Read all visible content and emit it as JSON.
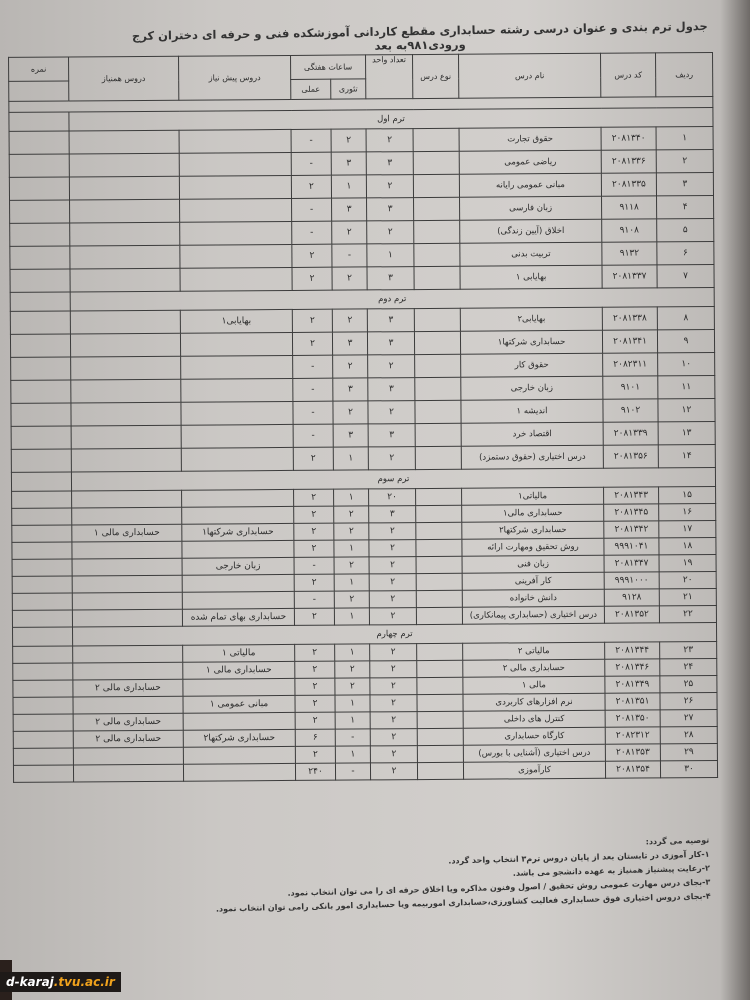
{
  "title": "جدول ترم بندی و عنوان درسی رشته حسابداری مقطع کاردانی آموزشکده فنی و حرفه ای دختران کرج ورودی۹۸۱به بعد",
  "headers": {
    "row": "ردیف",
    "code": "کد درس",
    "name": "نام درس",
    "type": "نوع درس",
    "units": "تعداد واحد",
    "weekly_hours": "ساعات هفتگی",
    "theory": "تئوری",
    "practical": "عملی",
    "prereq": "دروس پیش نیاز",
    "coreq": "دروس همنیاز",
    "grade": "نمره"
  },
  "terms": [
    {
      "label": "ترم اول",
      "courses": [
        [
          "۱",
          "۲۰۸۱۳۴۰",
          "حقوق تجارت",
          "",
          "۲",
          "۲",
          "-",
          "",
          ""
        ],
        [
          "۲",
          "۲۰۸۱۳۳۶",
          "ریاضی عمومی",
          "",
          "۳",
          "۳",
          "-",
          "",
          ""
        ],
        [
          "۳",
          "۲۰۸۱۳۳۵",
          "مبانی عمومی رایانه",
          "",
          "۲",
          "۱",
          "۲",
          "",
          ""
        ],
        [
          "۴",
          "۹۱۱۸",
          "زبان فارسی",
          "",
          "۳",
          "۳",
          "-",
          "",
          ""
        ],
        [
          "۵",
          "۹۱۰۸",
          "اخلاق (آیین زندگی)",
          "",
          "۲",
          "۲",
          "-",
          "",
          ""
        ],
        [
          "۶",
          "۹۱۳۲",
          "تربیت بدنی",
          "",
          "۱",
          "-",
          "۲",
          "",
          ""
        ],
        [
          "۷",
          "۲۰۸۱۳۳۷",
          "بهایابی ۱",
          "",
          "۳",
          "۲",
          "۲",
          "",
          ""
        ]
      ]
    },
    {
      "label": "ترم دوم",
      "courses": [
        [
          "۸",
          "۲۰۸۱۳۳۸",
          "بهایابی۲",
          "",
          "۳",
          "۲",
          "۲",
          "بهایابی۱",
          ""
        ],
        [
          "۹",
          "۲۰۸۱۳۴۱",
          "حسابداری شرکتها۱",
          "",
          "۳",
          "۳",
          "۲",
          "",
          ""
        ],
        [
          "۱۰",
          "۲۰۸۲۳۱۱",
          "حقوق کار",
          "",
          "۲",
          "۲",
          "-",
          "",
          ""
        ],
        [
          "۱۱",
          "۹۱۰۱",
          "زبان خارجی",
          "",
          "۳",
          "۳",
          "-",
          "",
          ""
        ],
        [
          "۱۲",
          "۹۱۰۲",
          "اندیشه ۱",
          "",
          "۲",
          "۲",
          "-",
          "",
          ""
        ],
        [
          "۱۳",
          "۲۰۸۱۳۳۹",
          "اقتصاد خرد",
          "",
          "۳",
          "۳",
          "-",
          "",
          ""
        ],
        [
          "۱۴",
          "۲۰۸۱۳۵۶",
          "درس اختیاری (حقوق دستمزد)",
          "",
          "۲",
          "۱",
          "۲",
          "",
          ""
        ]
      ]
    },
    {
      "label": "ترم سوم",
      "courses": [
        [
          "۱۵",
          "۲۰۸۱۳۴۳",
          "مالیاتی۱",
          "",
          "۲۰",
          "۱",
          "۲",
          "",
          ""
        ],
        [
          "۱۶",
          "۲۰۸۱۳۴۵",
          "حسابداری مالی۱",
          "",
          "۳",
          "۲",
          "۲",
          "",
          ""
        ],
        [
          "۱۷",
          "۲۰۸۱۳۴۲",
          "حسابداری شرکتها۲",
          "",
          "۲",
          "۲",
          "۲",
          "حسابداری شرکتها۱",
          "حسابداری مالی ۱"
        ],
        [
          "۱۸",
          "۹۹۹۱۰۴۱",
          "روش تحقیق ومهارت ارائه",
          "",
          "۲",
          "۱",
          "۲",
          "",
          ""
        ],
        [
          "۱۹",
          "۲۰۸۱۳۴۷",
          "زبان فنی",
          "",
          "۲",
          "۲",
          "-",
          "زبان خارجی",
          ""
        ],
        [
          "۲۰",
          "۹۹۹۱۰۰۰",
          "کار آفرینی",
          "",
          "۲",
          "۱",
          "۲",
          "",
          ""
        ],
        [
          "۲۱",
          "۹۱۲۸",
          "دانش خانواده",
          "",
          "۲",
          "۲",
          "-",
          "",
          ""
        ],
        [
          "۲۲",
          "۲۰۸۱۳۵۲",
          "درس اختیاری (حسابداری پیمانکاری)",
          "",
          "۲",
          "۱",
          "۲",
          "حسابداری بهای تمام شده",
          ""
        ]
      ]
    },
    {
      "label": "ترم چهارم",
      "courses": [
        [
          "۲۳",
          "۲۰۸۱۳۴۴",
          "مالیاتی ۲",
          "",
          "۲",
          "۱",
          "۲",
          "مالیاتی ۱",
          ""
        ],
        [
          "۲۴",
          "۲۰۸۱۳۴۶",
          "حسابداری مالی ۲",
          "",
          "۲",
          "۲",
          "۲",
          "حسابداری مالی ۱",
          ""
        ],
        [
          "۲۵",
          "۲۰۸۱۳۴۹",
          "مالی ۱",
          "",
          "۲",
          "۲",
          "۲",
          "",
          "حسابداری مالی ۲"
        ],
        [
          "۲۶",
          "۲۰۸۱۳۵۱",
          "نرم افزارهای کاربردی",
          "",
          "۲",
          "۱",
          "۲",
          "مبانی عمومی ۱",
          ""
        ],
        [
          "۲۷",
          "۲۰۸۱۳۵۰",
          "کنترل های داخلی",
          "",
          "۲",
          "۱",
          "۲",
          "",
          "حسابداری مالی ۲"
        ],
        [
          "۲۸",
          "۲۰۸۲۳۱۲",
          "کارگاه حسابداری",
          "",
          "۲",
          "-",
          "۶",
          "حسابداری شرکتها۲",
          "حسابداری مالی ۲"
        ],
        [
          "۲۹",
          "۲۰۸۱۳۵۳",
          "درس اختیاری (آشنایی با بورس)",
          "",
          "۲",
          "۱",
          "۲",
          "",
          ""
        ],
        [
          "۳۰",
          "۲۰۸۱۳۵۴",
          "کارآموزی",
          "",
          "۲",
          "-",
          "۲۴۰",
          "",
          ""
        ]
      ]
    }
  ],
  "notes": {
    "heading": "توصیه می گردد:",
    "items": [
      "۱-کار آموزی در تابستان بعد از پایان دروس ترم۳ انتخاب واحد گردد.",
      "۲-رعایت پیشنیاز همنیاز به عهده دانشجو می باشد.",
      "۳-بجای درس مهارت عمومی روش تحقیق / اصول وفنون مذاکره ویا اخلاق حرفه ای را می توان انتخاب نمود.",
      "۴-بجای دروس اختیاری فوق حسابداری فعالیت کشاورزی،حسابداری اموربیمه ویا حسابداری امور بانکی رامی توان انتخاب نمود."
    ]
  },
  "watermark": {
    "prefix": "d-karaj",
    "suffix": ".tvu.ac.ir"
  }
}
